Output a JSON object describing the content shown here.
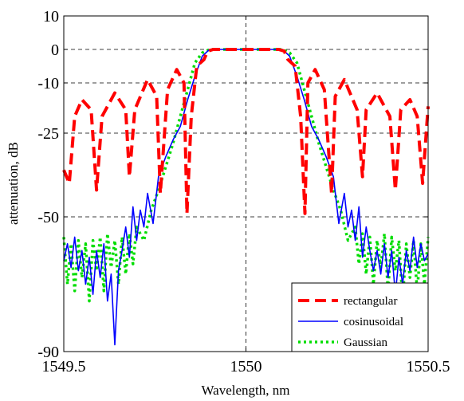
{
  "chart_data": {
    "type": "line",
    "title": "",
    "xlabel": "Wavelength, nm",
    "ylabel": "attenuation, dB",
    "xlim": [
      1549.5,
      1550.5
    ],
    "ylim": [
      -90,
      10
    ],
    "x_ticks": [
      1549.5,
      1550,
      1550.5
    ],
    "x_tick_labels": [
      "1549.5",
      "1550",
      "1550.5"
    ],
    "y_ticks": [
      10,
      0,
      -10,
      -25,
      -50,
      -90
    ],
    "y_tick_labels": [
      "10",
      "0",
      "-10",
      "-25",
      "-50",
      "-90"
    ],
    "grid": "dashed, at tick positions",
    "legend_position": "bottom-right",
    "series": [
      {
        "name": "rectangular",
        "color": "#ff0000",
        "style": "dashed",
        "points": [
          [
            1549.5,
            -36
          ],
          [
            1549.515,
            -40
          ],
          [
            1549.53,
            -20
          ],
          [
            1549.55,
            -15
          ],
          [
            1549.575,
            -18
          ],
          [
            1549.59,
            -42
          ],
          [
            1549.605,
            -20
          ],
          [
            1549.64,
            -13
          ],
          [
            1549.67,
            -18
          ],
          [
            1549.68,
            -38
          ],
          [
            1549.695,
            -18
          ],
          [
            1549.73,
            -9
          ],
          [
            1549.755,
            -14
          ],
          [
            1549.765,
            -43
          ],
          [
            1549.785,
            -12
          ],
          [
            1549.81,
            -6
          ],
          [
            1549.83,
            -10
          ],
          [
            1549.838,
            -49
          ],
          [
            1549.85,
            -20
          ],
          [
            1549.865,
            -5
          ],
          [
            1549.885,
            -3
          ],
          [
            1549.895,
            -0.5
          ],
          [
            1549.91,
            0
          ],
          [
            1550.0,
            0
          ],
          [
            1550.09,
            0
          ],
          [
            1550.105,
            -0.5
          ],
          [
            1550.115,
            -3
          ],
          [
            1550.135,
            -5
          ],
          [
            1550.15,
            -20
          ],
          [
            1550.162,
            -49
          ],
          [
            1550.17,
            -10
          ],
          [
            1550.19,
            -6
          ],
          [
            1550.215,
            -12
          ],
          [
            1550.235,
            -43
          ],
          [
            1550.245,
            -14
          ],
          [
            1550.27,
            -9
          ],
          [
            1550.305,
            -18
          ],
          [
            1550.32,
            -38
          ],
          [
            1550.33,
            -18
          ],
          [
            1550.36,
            -13
          ],
          [
            1550.395,
            -20
          ],
          [
            1550.41,
            -42
          ],
          [
            1550.425,
            -18
          ],
          [
            1550.45,
            -15
          ],
          [
            1550.47,
            -20
          ],
          [
            1550.485,
            -40
          ],
          [
            1550.5,
            -17
          ]
        ]
      },
      {
        "name": "cosinusoidal",
        "color": "#0000ff",
        "style": "solid",
        "points": [
          [
            1549.5,
            -63
          ],
          [
            1549.51,
            -58
          ],
          [
            1549.52,
            -65
          ],
          [
            1549.53,
            -56
          ],
          [
            1549.54,
            -66
          ],
          [
            1549.55,
            -60
          ],
          [
            1549.56,
            -70
          ],
          [
            1549.57,
            -62
          ],
          [
            1549.58,
            -73
          ],
          [
            1549.59,
            -60
          ],
          [
            1549.6,
            -68
          ],
          [
            1549.61,
            -58
          ],
          [
            1549.62,
            -75
          ],
          [
            1549.63,
            -67
          ],
          [
            1549.64,
            -88
          ],
          [
            1549.65,
            -66
          ],
          [
            1549.66,
            -60
          ],
          [
            1549.67,
            -53
          ],
          [
            1549.68,
            -62
          ],
          [
            1549.69,
            -47
          ],
          [
            1549.7,
            -57
          ],
          [
            1549.71,
            -48
          ],
          [
            1549.72,
            -53
          ],
          [
            1549.73,
            -43
          ],
          [
            1549.745,
            -52
          ],
          [
            1549.76,
            -38
          ],
          [
            1549.78,
            -32
          ],
          [
            1549.8,
            -27
          ],
          [
            1549.82,
            -23
          ],
          [
            1549.84,
            -15
          ],
          [
            1549.86,
            -8
          ],
          [
            1549.88,
            -2
          ],
          [
            1549.9,
            0
          ],
          [
            1550.0,
            0
          ],
          [
            1550.1,
            0
          ],
          [
            1550.12,
            -2
          ],
          [
            1550.14,
            -8
          ],
          [
            1550.16,
            -15
          ],
          [
            1550.18,
            -23
          ],
          [
            1550.2,
            -27
          ],
          [
            1550.22,
            -32
          ],
          [
            1550.24,
            -38
          ],
          [
            1550.255,
            -52
          ],
          [
            1550.27,
            -43
          ],
          [
            1550.28,
            -53
          ],
          [
            1550.29,
            -48
          ],
          [
            1550.3,
            -57
          ],
          [
            1550.31,
            -47
          ],
          [
            1550.32,
            -62
          ],
          [
            1550.33,
            -53
          ],
          [
            1550.34,
            -60
          ],
          [
            1550.35,
            -66
          ],
          [
            1550.36,
            -60
          ],
          [
            1550.37,
            -67
          ],
          [
            1550.38,
            -58
          ],
          [
            1550.39,
            -68
          ],
          [
            1550.4,
            -60
          ],
          [
            1550.41,
            -73
          ],
          [
            1550.42,
            -62
          ],
          [
            1550.43,
            -70
          ],
          [
            1550.44,
            -60
          ],
          [
            1550.45,
            -66
          ],
          [
            1550.46,
            -56
          ],
          [
            1550.47,
            -65
          ],
          [
            1550.48,
            -58
          ],
          [
            1550.49,
            -63
          ],
          [
            1550.5,
            -61
          ]
        ]
      },
      {
        "name": "Gaussian",
        "color": "#00dd00",
        "style": "dotted",
        "points": [
          [
            1549.5,
            -56
          ],
          [
            1549.51,
            -70
          ],
          [
            1549.52,
            -58
          ],
          [
            1549.53,
            -72
          ],
          [
            1549.54,
            -57
          ],
          [
            1549.55,
            -68
          ],
          [
            1549.56,
            -58
          ],
          [
            1549.57,
            -75
          ],
          [
            1549.58,
            -57
          ],
          [
            1549.59,
            -66
          ],
          [
            1549.6,
            -56
          ],
          [
            1549.61,
            -72
          ],
          [
            1549.62,
            -55
          ],
          [
            1549.63,
            -65
          ],
          [
            1549.64,
            -57
          ],
          [
            1549.65,
            -70
          ],
          [
            1549.66,
            -56
          ],
          [
            1549.67,
            -67
          ],
          [
            1549.68,
            -55
          ],
          [
            1549.69,
            -64
          ],
          [
            1549.7,
            -53
          ],
          [
            1549.72,
            -57
          ],
          [
            1549.74,
            -48
          ],
          [
            1549.76,
            -42
          ],
          [
            1549.78,
            -35
          ],
          [
            1549.8,
            -28
          ],
          [
            1549.82,
            -20
          ],
          [
            1549.84,
            -12
          ],
          [
            1549.86,
            -4
          ],
          [
            1549.88,
            -1
          ],
          [
            1549.9,
            0
          ],
          [
            1550.0,
            0
          ],
          [
            1550.1,
            0
          ],
          [
            1550.12,
            -1
          ],
          [
            1550.14,
            -4
          ],
          [
            1550.16,
            -12
          ],
          [
            1550.18,
            -20
          ],
          [
            1550.2,
            -28
          ],
          [
            1550.22,
            -35
          ],
          [
            1550.24,
            -42
          ],
          [
            1550.26,
            -48
          ],
          [
            1550.28,
            -57
          ],
          [
            1550.3,
            -53
          ],
          [
            1550.31,
            -64
          ],
          [
            1550.32,
            -55
          ],
          [
            1550.33,
            -67
          ],
          [
            1550.34,
            -56
          ],
          [
            1550.35,
            -70
          ],
          [
            1550.36,
            -57
          ],
          [
            1550.37,
            -65
          ],
          [
            1550.38,
            -55
          ],
          [
            1550.39,
            -72
          ],
          [
            1550.4,
            -56
          ],
          [
            1550.41,
            -66
          ],
          [
            1550.42,
            -57
          ],
          [
            1550.43,
            -75
          ],
          [
            1550.44,
            -58
          ],
          [
            1550.45,
            -68
          ],
          [
            1550.46,
            -57
          ],
          [
            1550.47,
            -72
          ],
          [
            1550.48,
            -58
          ],
          [
            1550.49,
            -70
          ],
          [
            1550.5,
            -56
          ]
        ]
      }
    ]
  }
}
